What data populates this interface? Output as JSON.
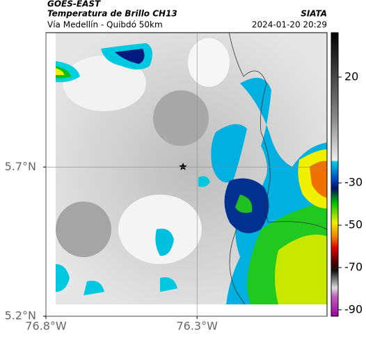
{
  "header": {
    "source": "GOES-EAST",
    "title": "Temperatura de Brillo CH13",
    "org": "SIATA",
    "subtitle": "Vía Medellín - Quibdó 50km",
    "timestamp": "2024-01-20 20:29"
  },
  "map": {
    "xlim": [
      -76.8,
      -75.87
    ],
    "ylim": [
      5.2,
      6.15
    ],
    "xticks": [
      {
        "value": -76.8,
        "label": "76.8°W"
      },
      {
        "value": -76.3,
        "label": "76.3°W"
      }
    ],
    "yticks": [
      {
        "value": 5.2,
        "label": "5.2°N"
      },
      {
        "value": 5.7,
        "label": "5.7°N"
      }
    ],
    "grid": true
  },
  "colorbar": {
    "lim": [
      -93,
      41
    ],
    "ticks": [
      20,
      -30,
      -50,
      -70,
      -90
    ]
  }
}
